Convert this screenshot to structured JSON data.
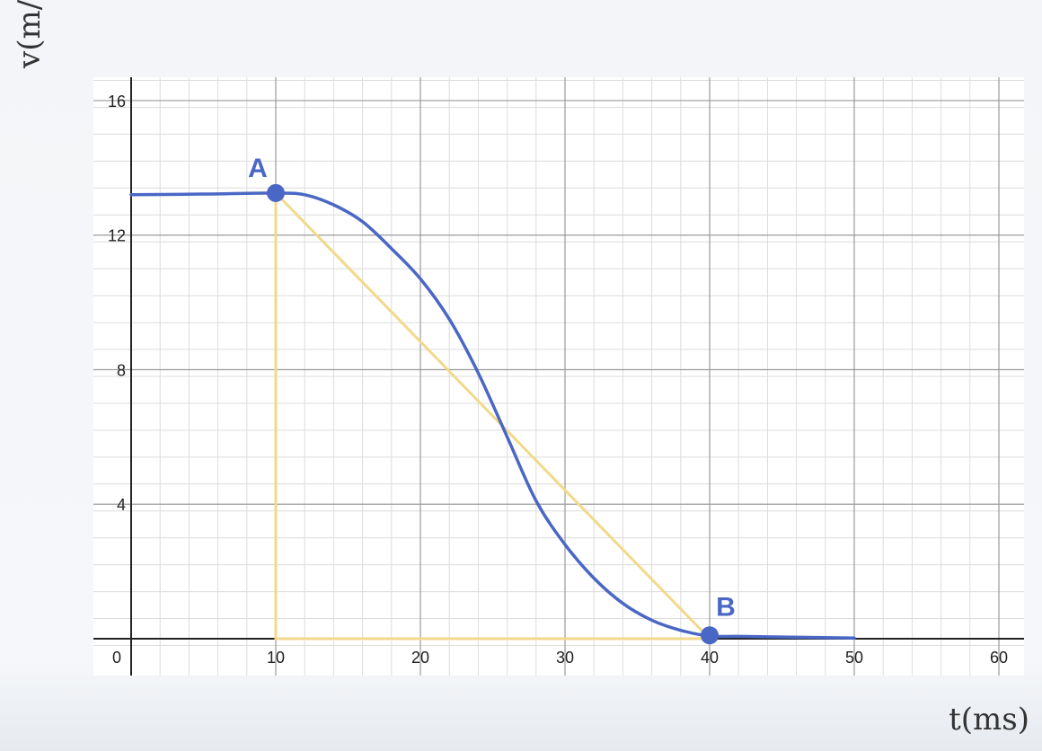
{
  "colors": {
    "curve": "#4a67c5",
    "points": "#4a67c5",
    "triangle": "#f2d98a",
    "grid_major": "#9a9a9a",
    "grid_minor": "#dcdcdc",
    "axis": "#222222"
  },
  "chart_data": {
    "type": "line",
    "title": "",
    "xlabel": "t(ms)",
    "ylabel": "v(m/s)",
    "xlim": [
      0,
      62
    ],
    "ylim": [
      -1,
      16.8
    ],
    "grid": true,
    "x_ticks": [
      0,
      10,
      20,
      30,
      40,
      50,
      60
    ],
    "y_ticks": [
      4,
      8,
      12,
      16
    ],
    "series": [
      {
        "values": [
          {
            "x": 0,
            "y": 13.2
          },
          {
            "x": 5,
            "y": 13.22
          },
          {
            "x": 10,
            "y": 13.25
          },
          {
            "x": 12,
            "y": 13.2
          },
          {
            "x": 14,
            "y": 12.9
          },
          {
            "x": 16,
            "y": 12.4
          },
          {
            "x": 18,
            "y": 11.6
          },
          {
            "x": 20,
            "y": 10.7
          },
          {
            "x": 22,
            "y": 9.5
          },
          {
            "x": 24,
            "y": 7.9
          },
          {
            "x": 26,
            "y": 6.0
          },
          {
            "x": 28,
            "y": 4.1
          },
          {
            "x": 30,
            "y": 2.8
          },
          {
            "x": 32,
            "y": 1.8
          },
          {
            "x": 34,
            "y": 1.05
          },
          {
            "x": 36,
            "y": 0.55
          },
          {
            "x": 38,
            "y": 0.25
          },
          {
            "x": 40,
            "y": 0.08
          },
          {
            "x": 42,
            "y": 0.07
          },
          {
            "x": 45,
            "y": 0.05
          },
          {
            "x": 50,
            "y": 0.02
          }
        ]
      }
    ],
    "points": [
      {
        "label": "A",
        "x": 10,
        "y": 13.25
      },
      {
        "label": "B",
        "x": 40,
        "y": 0.1
      }
    ],
    "triangle": [
      {
        "x": 10,
        "y": 13.25
      },
      {
        "x": 10,
        "y": 0
      },
      {
        "x": 40,
        "y": 0
      }
    ]
  }
}
